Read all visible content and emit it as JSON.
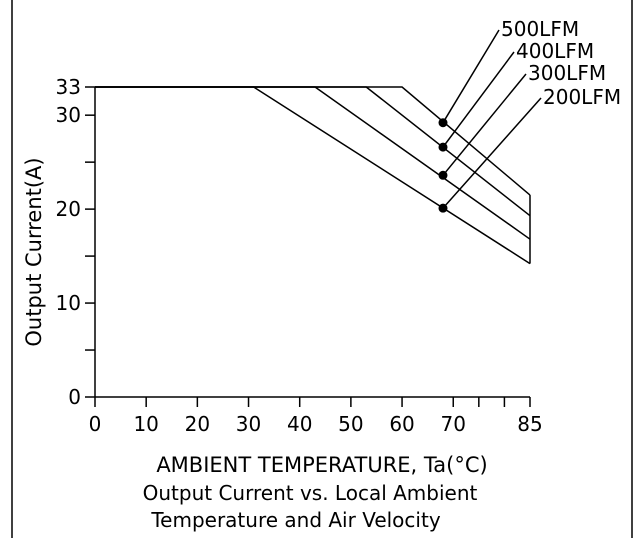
{
  "chart_data": {
    "type": "line",
    "xlabel": "AMBIENT TEMPERATURE, Ta(°C)",
    "ylabel": "Output Current(A)",
    "caption": [
      "Output Current vs. Local Ambient",
      "Temperature and Air Velocity"
    ],
    "xlim": [
      0,
      85
    ],
    "ylim": [
      0,
      33
    ],
    "x_ticks": [
      "0",
      "10",
      "20",
      "30",
      "40",
      "50",
      "60",
      "70",
      "85"
    ],
    "x_tick_values": [
      0,
      10,
      20,
      30,
      40,
      50,
      60,
      70,
      85
    ],
    "y_ticks": [
      "0",
      "10",
      "20",
      "30",
      "33"
    ],
    "y_tick_values": [
      0,
      10,
      20,
      30,
      33
    ],
    "y_minor_ticks": [
      5,
      15,
      25
    ],
    "x_minor_ticks": [
      75,
      80
    ],
    "grid": false,
    "series": [
      {
        "name": "500LFM",
        "x": [
          0,
          60,
          85
        ],
        "y": [
          33,
          33,
          21.5
        ]
      },
      {
        "name": "400LFM",
        "x": [
          0,
          53,
          85
        ],
        "y": [
          33,
          33,
          19.3
        ]
      },
      {
        "name": "300LFM",
        "x": [
          0,
          43,
          85
        ],
        "y": [
          33,
          33,
          16.8
        ]
      },
      {
        "name": "200LFM",
        "x": [
          0,
          31,
          85
        ],
        "y": [
          33,
          33,
          14.2
        ]
      }
    ],
    "markers": [
      {
        "series": "500LFM",
        "x": 68,
        "y": 29.2
      },
      {
        "series": "400LFM",
        "x": 68,
        "y": 26.6
      },
      {
        "series": "300LFM",
        "x": 68,
        "y": 23.6
      },
      {
        "series": "200LFM",
        "x": 68,
        "y": 20.1
      }
    ]
  }
}
